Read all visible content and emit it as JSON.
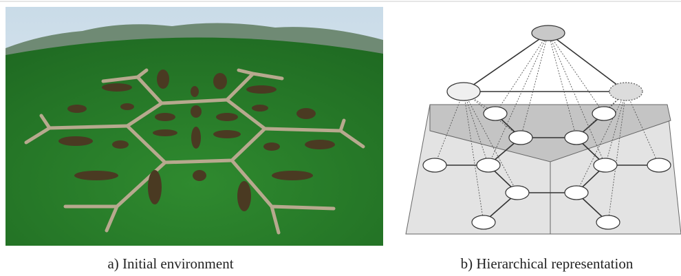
{
  "panels": [
    {
      "caption": "a) Initial environment"
    },
    {
      "caption": "b) Hierarchical representation"
    }
  ]
}
